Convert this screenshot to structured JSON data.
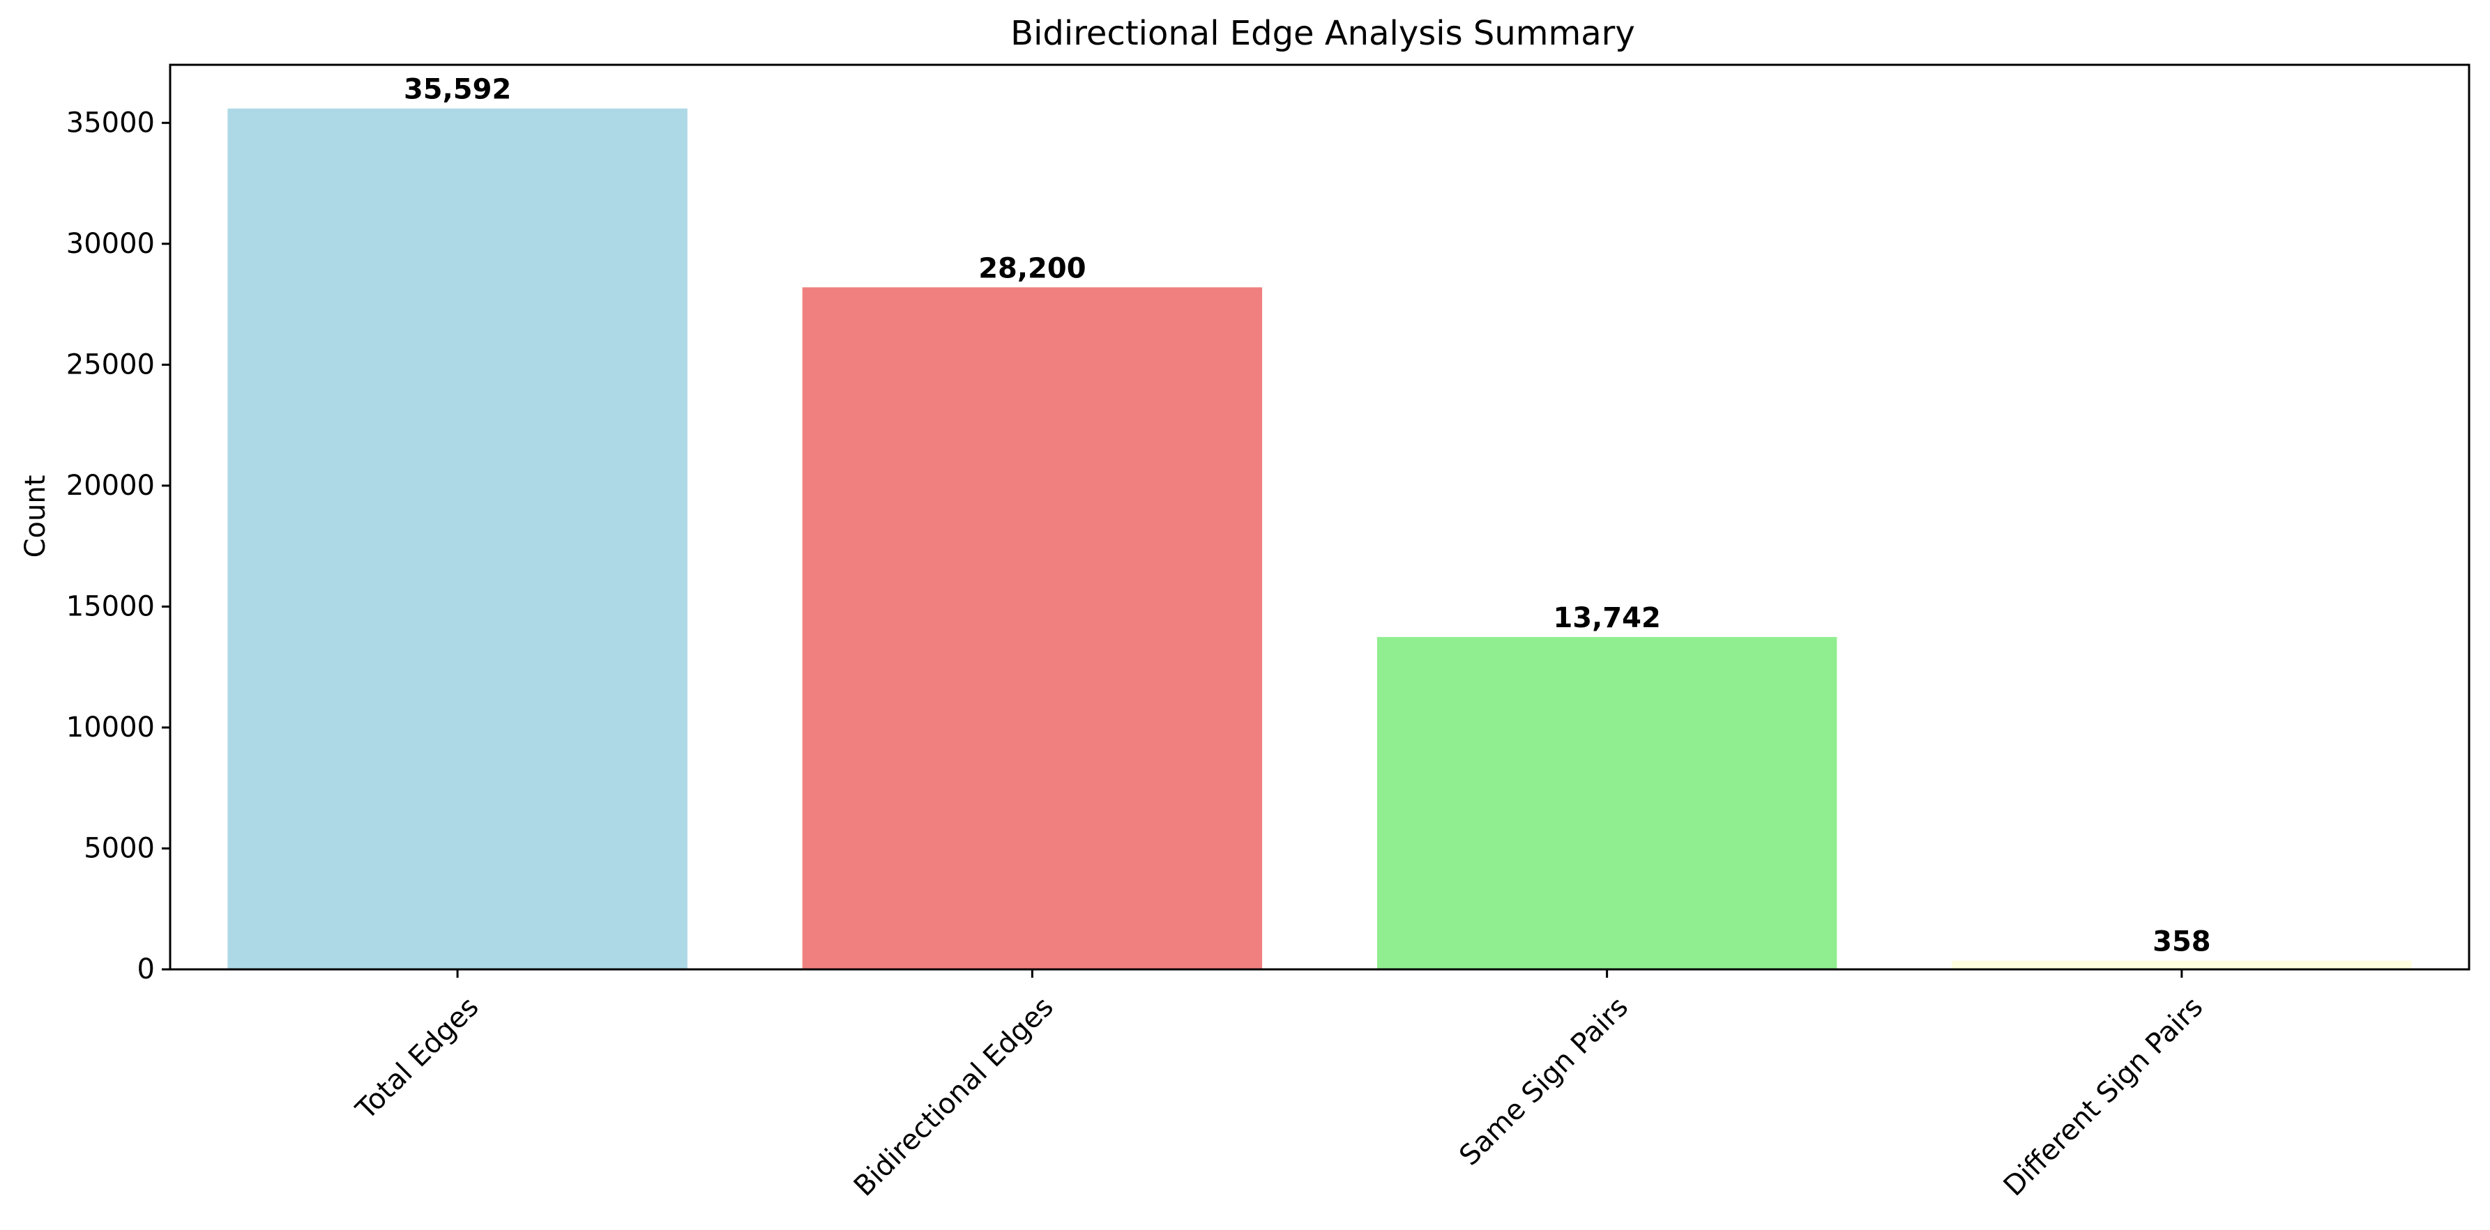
{
  "chart_data": {
    "type": "bar",
    "title": "Bidirectional Edge Analysis Summary",
    "xlabel": "",
    "ylabel": "Count",
    "categories": [
      "Total Edges",
      "Bidirectional Edges",
      "Same Sign Pairs",
      "Different Sign Pairs"
    ],
    "values": [
      35592,
      28200,
      13742,
      358
    ],
    "value_labels": [
      "35,592",
      "28,200",
      "13,742",
      "358"
    ],
    "colors": [
      "#add8e6",
      "#f08080",
      "#90ee90",
      "#ffffe0"
    ],
    "ylim": [
      0,
      37400
    ],
    "yticks": [
      0,
      5000,
      10000,
      15000,
      20000,
      25000,
      30000,
      35000
    ],
    "ytick_labels": [
      "0",
      "5000",
      "10000",
      "15000",
      "20000",
      "25000",
      "30000",
      "35000"
    ],
    "xtick_rotation": 45,
    "grid": false,
    "legend": "none"
  }
}
